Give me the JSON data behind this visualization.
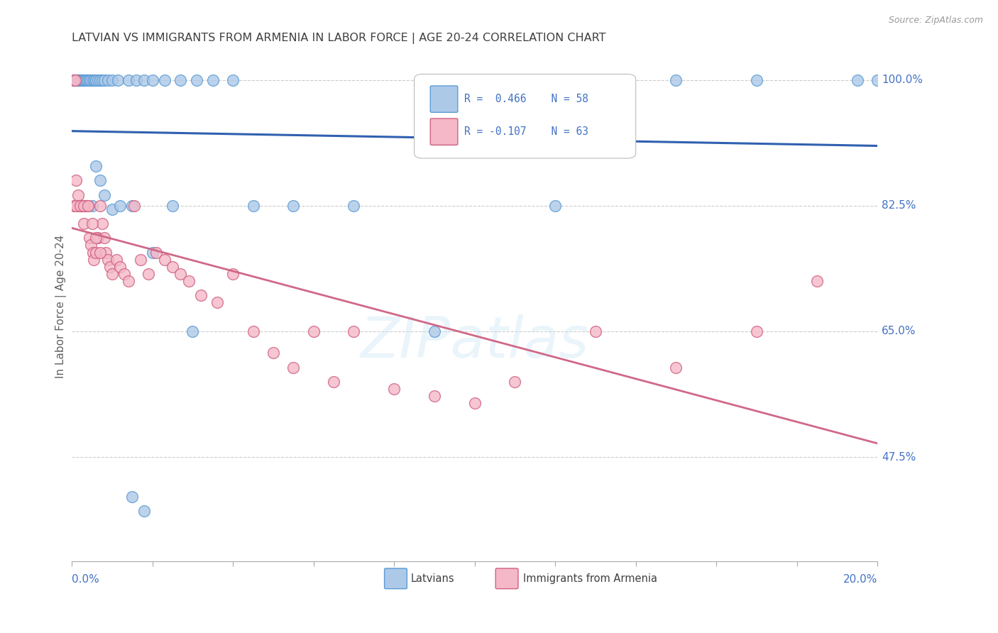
{
  "title": "LATVIAN VS IMMIGRANTS FROM ARMENIA IN LABOR FORCE | AGE 20-24 CORRELATION CHART",
  "source": "Source: ZipAtlas.com",
  "ylabel": "In Labor Force | Age 20-24",
  "xmin": 0.0,
  "xmax": 20.0,
  "ymin": 33.0,
  "ymax": 104.0,
  "yticks": [
    47.5,
    65.0,
    82.5,
    100.0
  ],
  "ytick_labels": [
    "47.5%",
    "65.0%",
    "82.5%",
    "100.0%"
  ],
  "latvians_color": "#adc9e8",
  "latvians_edge": "#5b9bd5",
  "latvians_line_color": "#3060b0",
  "armenians_color": "#f4b8c8",
  "armenians_edge": "#d06080",
  "armenians_line_color": "#d06888",
  "watermark": "ZIPatlas",
  "bg_color": "#ffffff",
  "grid_color": "#cccccc",
  "title_color": "#404040",
  "blue_label_color": "#4472c4",
  "axis_label_color": "#606060",
  "latvians_x": [
    0.05,
    0.07,
    0.1,
    0.12,
    0.14,
    0.16,
    0.18,
    0.2,
    0.22,
    0.25,
    0.28,
    0.3,
    0.33,
    0.36,
    0.4,
    0.44,
    0.48,
    0.52,
    0.56,
    0.6,
    0.65,
    0.7,
    0.75,
    0.8,
    0.9,
    1.0,
    1.15,
    1.4,
    1.6,
    1.8,
    2.0,
    2.3,
    2.7,
    3.1,
    3.5,
    4.0,
    1.5,
    1.8,
    0.3,
    0.5,
    0.6,
    0.7,
    0.8,
    1.0,
    1.2,
    1.5,
    2.0,
    2.5,
    3.0,
    4.5,
    5.5,
    7.0,
    9.0,
    12.0,
    15.0,
    17.0,
    19.5,
    20.0
  ],
  "latvians_y": [
    100.0,
    100.0,
    100.0,
    100.0,
    100.0,
    100.0,
    100.0,
    100.0,
    100.0,
    100.0,
    100.0,
    100.0,
    100.0,
    100.0,
    100.0,
    100.0,
    100.0,
    100.0,
    100.0,
    100.0,
    100.0,
    100.0,
    100.0,
    100.0,
    100.0,
    100.0,
    100.0,
    100.0,
    100.0,
    100.0,
    100.0,
    100.0,
    100.0,
    100.0,
    100.0,
    100.0,
    42.0,
    40.0,
    82.5,
    82.5,
    88.0,
    86.0,
    84.0,
    82.0,
    82.5,
    82.5,
    76.0,
    82.5,
    65.0,
    82.5,
    82.5,
    82.5,
    65.0,
    82.5,
    100.0,
    100.0,
    100.0,
    100.0
  ],
  "armenians_x": [
    0.05,
    0.08,
    0.1,
    0.15,
    0.18,
    0.2,
    0.22,
    0.25,
    0.28,
    0.3,
    0.33,
    0.36,
    0.4,
    0.44,
    0.48,
    0.52,
    0.55,
    0.6,
    0.65,
    0.7,
    0.75,
    0.8,
    0.85,
    0.9,
    0.95,
    1.0,
    1.1,
    1.2,
    1.3,
    1.4,
    1.55,
    1.7,
    1.9,
    2.1,
    2.3,
    2.5,
    2.7,
    2.9,
    3.2,
    3.6,
    4.0,
    4.5,
    5.0,
    5.5,
    6.0,
    6.5,
    7.0,
    8.0,
    9.0,
    10.0,
    11.0,
    13.0,
    15.0,
    17.0,
    18.5,
    0.05,
    0.1,
    0.2,
    0.3,
    0.4,
    0.5,
    0.6,
    0.7
  ],
  "armenians_y": [
    100.0,
    100.0,
    86.0,
    84.0,
    82.5,
    82.5,
    82.5,
    82.5,
    82.5,
    80.0,
    82.5,
    82.5,
    82.5,
    78.0,
    77.0,
    76.0,
    75.0,
    76.0,
    78.0,
    82.5,
    80.0,
    78.0,
    76.0,
    75.0,
    74.0,
    73.0,
    75.0,
    74.0,
    73.0,
    72.0,
    82.5,
    75.0,
    73.0,
    76.0,
    75.0,
    74.0,
    73.0,
    72.0,
    70.0,
    69.0,
    73.0,
    65.0,
    62.0,
    60.0,
    65.0,
    58.0,
    65.0,
    57.0,
    56.0,
    55.0,
    58.0,
    65.0,
    60.0,
    65.0,
    72.0,
    82.5,
    82.5,
    82.5,
    82.5,
    82.5,
    80.0,
    78.0,
    76.0
  ]
}
